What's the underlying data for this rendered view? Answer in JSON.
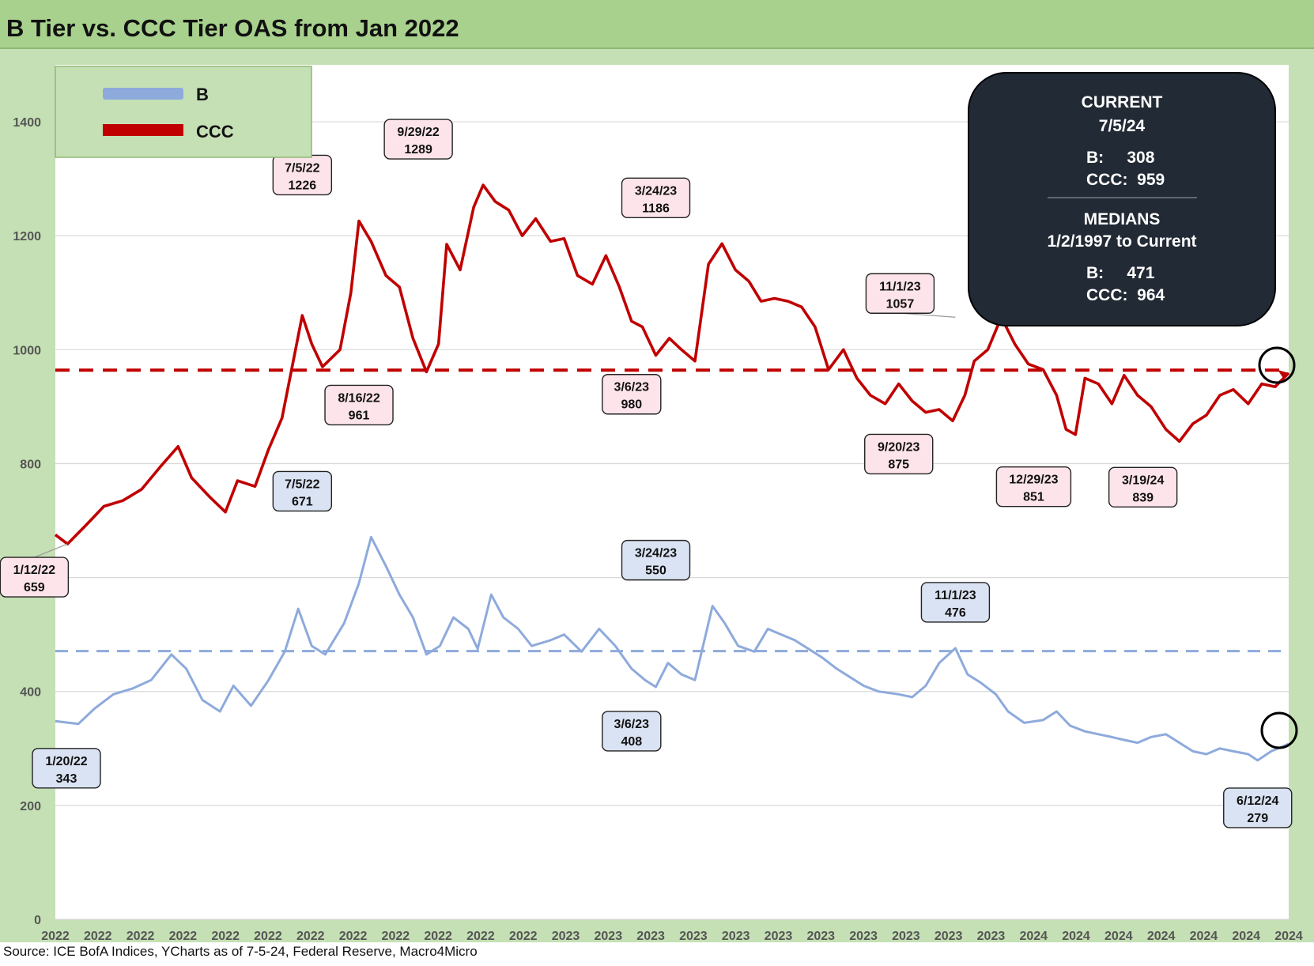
{
  "title": "B Tier vs. CCC Tier OAS from Jan 2022",
  "source": "Source: ICE BofA Indices, YCharts as of 7-5-24, Federal Reserve, Macro4Micro",
  "colors": {
    "b_series": "#8eaadc",
    "ccc_series": "#c00000",
    "background": "#c5e0b4",
    "plot_bg": "#ffffff",
    "box_dark": "#222a35",
    "ccc_label_bg": "#fde4ea",
    "b_label_bg": "#dae3f3"
  },
  "legend": {
    "items": [
      {
        "label": "B",
        "color": "#8eaadc"
      },
      {
        "label": "CCC",
        "color": "#c00000"
      }
    ]
  },
  "info_box": {
    "current_label": "CURRENT",
    "current_date": "7/5/24",
    "current_b": "B:     308",
    "current_ccc": "CCC:  959",
    "medians_label": "MEDIANS",
    "medians_range": "1/2/1997 to Current",
    "median_b": "B:     471",
    "median_ccc": "CCC:  964"
  },
  "chart_data": {
    "type": "line",
    "title": "B Tier vs. CCC Tier OAS from Jan 2022",
    "xlabel": "",
    "ylabel": "",
    "ylim": [
      0,
      1500
    ],
    "y_ticks": [
      0,
      200,
      400,
      600,
      800,
      1000,
      1200,
      1400
    ],
    "x_range": [
      "2022-01-03",
      "2024-07-05"
    ],
    "x_tick_labels": [
      "2022",
      "2022",
      "2022",
      "2022",
      "2022",
      "2022",
      "2022",
      "2022",
      "2022",
      "2022",
      "2022",
      "2022",
      "2023",
      "2023",
      "2023",
      "2023",
      "2023",
      "2023",
      "2023",
      "2023",
      "2023",
      "2023",
      "2023",
      "2024",
      "2024",
      "2024",
      "2024",
      "2024",
      "2024",
      "2024"
    ],
    "grid": "horizontal",
    "legend_position": "top-left",
    "medians": {
      "B": 471,
      "CCC": 964
    },
    "series": [
      {
        "name": "CCC",
        "color": "#c00000",
        "points": [
          [
            "2022-01-03",
            675
          ],
          [
            "2022-01-12",
            659
          ],
          [
            "2022-01-25",
            690
          ],
          [
            "2022-02-08",
            725
          ],
          [
            "2022-02-22",
            735
          ],
          [
            "2022-03-08",
            755
          ],
          [
            "2022-03-22",
            795
          ],
          [
            "2022-04-04",
            830
          ],
          [
            "2022-04-14",
            775
          ],
          [
            "2022-04-28",
            740
          ],
          [
            "2022-05-09",
            715
          ],
          [
            "2022-05-18",
            770
          ],
          [
            "2022-05-31",
            760
          ],
          [
            "2022-06-10",
            825
          ],
          [
            "2022-06-20",
            880
          ],
          [
            "2022-06-30",
            1000
          ],
          [
            "2022-07-05",
            1060
          ],
          [
            "2022-07-12",
            1010
          ],
          [
            "2022-07-20",
            970
          ],
          [
            "2022-08-02",
            1000
          ],
          [
            "2022-08-10",
            1100
          ],
          [
            "2022-08-16",
            1226
          ],
          [
            "2022-08-25",
            1190
          ],
          [
            "2022-09-05",
            1130
          ],
          [
            "2022-09-15",
            1110
          ],
          [
            "2022-09-25",
            1020
          ],
          [
            "2022-10-05",
            961
          ],
          [
            "2022-10-14",
            1010
          ],
          [
            "2022-10-20",
            1185
          ],
          [
            "2022-10-30",
            1140
          ],
          [
            "2022-11-09",
            1250
          ],
          [
            "2022-11-16",
            1289
          ],
          [
            "2022-11-25",
            1260
          ],
          [
            "2022-12-05",
            1245
          ],
          [
            "2022-12-15",
            1200
          ],
          [
            "2022-12-25",
            1230
          ],
          [
            "2023-01-05",
            1190
          ],
          [
            "2023-01-15",
            1195
          ],
          [
            "2023-01-25",
            1130
          ],
          [
            "2023-02-05",
            1115
          ],
          [
            "2023-02-15",
            1165
          ],
          [
            "2023-02-25",
            1110
          ],
          [
            "2023-03-06",
            1050
          ],
          [
            "2023-03-14",
            1040
          ],
          [
            "2023-03-24",
            990
          ],
          [
            "2023-04-03",
            1020
          ],
          [
            "2023-04-12",
            1000
          ],
          [
            "2023-04-22",
            980
          ],
          [
            "2023-05-02",
            1150
          ],
          [
            "2023-05-12",
            1186
          ],
          [
            "2023-05-22",
            1140
          ],
          [
            "2023-06-01",
            1120
          ],
          [
            "2023-06-10",
            1085
          ],
          [
            "2023-06-20",
            1090
          ],
          [
            "2023-06-30",
            1085
          ],
          [
            "2023-07-10",
            1075
          ],
          [
            "2023-07-20",
            1040
          ],
          [
            "2023-07-30",
            965
          ],
          [
            "2023-08-10",
            1000
          ],
          [
            "2023-08-20",
            950
          ],
          [
            "2023-08-30",
            920
          ],
          [
            "2023-09-10",
            905
          ],
          [
            "2023-09-20",
            940
          ],
          [
            "2023-09-30",
            910
          ],
          [
            "2023-10-10",
            890
          ],
          [
            "2023-10-20",
            895
          ],
          [
            "2023-10-30",
            875
          ],
          [
            "2023-11-08",
            920
          ],
          [
            "2023-11-15",
            980
          ],
          [
            "2023-11-25",
            1000
          ],
          [
            "2023-12-05",
            1057
          ],
          [
            "2023-12-15",
            1010
          ],
          [
            "2023-12-25",
            975
          ],
          [
            "2024-01-05",
            965
          ],
          [
            "2024-01-15",
            920
          ],
          [
            "2024-01-22",
            860
          ],
          [
            "2024-01-29",
            851
          ],
          [
            "2024-02-05",
            950
          ],
          [
            "2024-02-15",
            940
          ],
          [
            "2024-02-25",
            905
          ],
          [
            "2024-03-05",
            955
          ],
          [
            "2024-03-15",
            920
          ],
          [
            "2024-03-25",
            900
          ],
          [
            "2024-04-05",
            860
          ],
          [
            "2024-04-15",
            839
          ],
          [
            "2024-04-25",
            870
          ],
          [
            "2024-05-05",
            885
          ],
          [
            "2024-05-15",
            920
          ],
          [
            "2024-05-25",
            930
          ],
          [
            "2024-06-05",
            905
          ],
          [
            "2024-06-15",
            940
          ],
          [
            "2024-06-25",
            935
          ],
          [
            "2024-07-05",
            959
          ]
        ],
        "labels": [
          {
            "date": "1/12/22",
            "value": 659
          },
          {
            "date": "7/5/22",
            "value": 1226
          },
          {
            "date": "8/16/22",
            "value": 961
          },
          {
            "date": "9/29/22",
            "value": 1289
          },
          {
            "date": "3/6/23",
            "value": 980
          },
          {
            "date": "3/24/23",
            "value": 1186
          },
          {
            "date": "9/20/23",
            "value": 875
          },
          {
            "date": "11/1/23",
            "value": 1057
          },
          {
            "date": "12/29/23",
            "value": 851
          },
          {
            "date": "3/19/24",
            "value": 839
          }
        ]
      },
      {
        "name": "B",
        "color": "#8eaadc",
        "points": [
          [
            "2022-01-03",
            348
          ],
          [
            "2022-01-20",
            343
          ],
          [
            "2022-02-01",
            370
          ],
          [
            "2022-02-15",
            395
          ],
          [
            "2022-03-01",
            405
          ],
          [
            "2022-03-15",
            420
          ],
          [
            "2022-03-30",
            465
          ],
          [
            "2022-04-10",
            440
          ],
          [
            "2022-04-22",
            385
          ],
          [
            "2022-05-05",
            365
          ],
          [
            "2022-05-15",
            410
          ],
          [
            "2022-05-28",
            375
          ],
          [
            "2022-06-10",
            420
          ],
          [
            "2022-06-22",
            470
          ],
          [
            "2022-07-02",
            545
          ],
          [
            "2022-07-12",
            480
          ],
          [
            "2022-07-22",
            465
          ],
          [
            "2022-08-05",
            520
          ],
          [
            "2022-08-16",
            590
          ],
          [
            "2022-08-25",
            671
          ],
          [
            "2022-09-05",
            620
          ],
          [
            "2022-09-15",
            570
          ],
          [
            "2022-09-25",
            530
          ],
          [
            "2022-10-05",
            465
          ],
          [
            "2022-10-15",
            480
          ],
          [
            "2022-10-25",
            530
          ],
          [
            "2022-11-05",
            510
          ],
          [
            "2022-11-12",
            475
          ],
          [
            "2022-11-22",
            570
          ],
          [
            "2022-12-01",
            530
          ],
          [
            "2022-12-12",
            510
          ],
          [
            "2022-12-22",
            480
          ],
          [
            "2023-01-05",
            490
          ],
          [
            "2023-01-15",
            500
          ],
          [
            "2023-01-28",
            470
          ],
          [
            "2023-02-10",
            510
          ],
          [
            "2023-02-22",
            480
          ],
          [
            "2023-03-06",
            440
          ],
          [
            "2023-03-16",
            420
          ],
          [
            "2023-03-24",
            408
          ],
          [
            "2023-04-02",
            450
          ],
          [
            "2023-04-12",
            430
          ],
          [
            "2023-04-22",
            420
          ],
          [
            "2023-05-05",
            550
          ],
          [
            "2023-05-14",
            520
          ],
          [
            "2023-05-24",
            480
          ],
          [
            "2023-06-05",
            470
          ],
          [
            "2023-06-15",
            510
          ],
          [
            "2023-06-25",
            500
          ],
          [
            "2023-07-05",
            490
          ],
          [
            "2023-07-15",
            475
          ],
          [
            "2023-07-25",
            460
          ],
          [
            "2023-08-05",
            440
          ],
          [
            "2023-08-15",
            425
          ],
          [
            "2023-08-25",
            410
          ],
          [
            "2023-09-05",
            400
          ],
          [
            "2023-09-20",
            395
          ],
          [
            "2023-09-30",
            390
          ],
          [
            "2023-10-10",
            410
          ],
          [
            "2023-10-20",
            450
          ],
          [
            "2023-11-01",
            476
          ],
          [
            "2023-11-10",
            430
          ],
          [
            "2023-11-20",
            415
          ],
          [
            "2023-12-01",
            395
          ],
          [
            "2023-12-10",
            365
          ],
          [
            "2023-12-22",
            345
          ],
          [
            "2024-01-05",
            350
          ],
          [
            "2024-01-15",
            365
          ],
          [
            "2024-01-25",
            340
          ],
          [
            "2024-02-05",
            330
          ],
          [
            "2024-02-15",
            325
          ],
          [
            "2024-02-25",
            320
          ],
          [
            "2024-03-05",
            315
          ],
          [
            "2024-03-15",
            310
          ],
          [
            "2024-03-25",
            320
          ],
          [
            "2024-04-05",
            325
          ],
          [
            "2024-04-15",
            310
          ],
          [
            "2024-04-25",
            295
          ],
          [
            "2024-05-05",
            290
          ],
          [
            "2024-05-15",
            300
          ],
          [
            "2024-05-25",
            295
          ],
          [
            "2024-06-05",
            290
          ],
          [
            "2024-06-12",
            279
          ],
          [
            "2024-06-22",
            295
          ],
          [
            "2024-07-05",
            308
          ]
        ],
        "labels": [
          {
            "date": "1/20/22",
            "value": 343
          },
          {
            "date": "7/5/22",
            "value": 671
          },
          {
            "date": "3/6/23",
            "value": 408
          },
          {
            "date": "3/24/23",
            "value": 550
          },
          {
            "date": "11/1/23",
            "value": 476
          },
          {
            "date": "6/12/24",
            "value": 279
          }
        ]
      }
    ]
  }
}
